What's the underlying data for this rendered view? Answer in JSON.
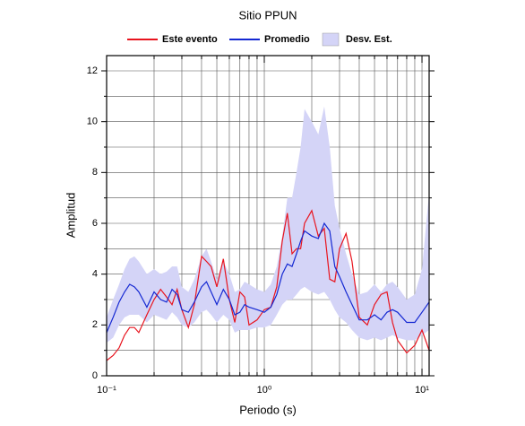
{
  "chart_data": {
    "type": "line",
    "title": "Sitio PPUN",
    "xlabel": "Periodo (s)",
    "ylabel": "Amplitud",
    "xscale": "log",
    "grid": true,
    "legend": "top",
    "xlim": [
      0.1,
      11.1
    ],
    "ylim": [
      0,
      12.6
    ],
    "xticks": [
      {
        "value": 0.1,
        "label": "10⁻¹"
      },
      {
        "value": 1,
        "label": "10⁰"
      },
      {
        "value": 10,
        "label": "10¹"
      }
    ],
    "xminor": [
      0.2,
      0.3,
      0.4,
      0.5,
      0.6,
      0.7,
      0.8,
      0.9,
      2,
      3,
      4,
      5,
      6,
      7,
      8,
      9
    ],
    "yticks": [
      0,
      2,
      4,
      6,
      8,
      10,
      12
    ],
    "yminor": [
      1,
      3,
      5,
      7,
      9,
      11
    ],
    "x": [
      0.1,
      0.11,
      0.12,
      0.13,
      0.14,
      0.15,
      0.16,
      0.18,
      0.2,
      0.22,
      0.24,
      0.26,
      0.28,
      0.3,
      0.33,
      0.36,
      0.4,
      0.43,
      0.46,
      0.5,
      0.55,
      0.6,
      0.65,
      0.7,
      0.75,
      0.8,
      0.9,
      1.0,
      1.1,
      1.2,
      1.3,
      1.4,
      1.5,
      1.6,
      1.7,
      1.8,
      2.0,
      2.2,
      2.4,
      2.6,
      2.8,
      3.0,
      3.3,
      3.6,
      4.0,
      4.5,
      5.0,
      5.5,
      6.0,
      6.5,
      7.0,
      8.0,
      9.0,
      10.0,
      11.1
    ],
    "band": {
      "name": "Desv. Est.",
      "color": "#d4d4f7",
      "lower": [
        1.3,
        1.5,
        2.0,
        2.3,
        2.4,
        2.4,
        2.4,
        2.1,
        2.4,
        2.3,
        2.2,
        2.5,
        2.3,
        2.0,
        1.9,
        2.1,
        2.5,
        2.6,
        2.4,
        2.1,
        2.4,
        2.2,
        1.7,
        1.8,
        1.8,
        1.8,
        1.9,
        1.9,
        2.0,
        2.4,
        2.8,
        3.0,
        3.0,
        3.2,
        3.4,
        3.5,
        3.3,
        3.2,
        3.3,
        3.0,
        2.6,
        2.3,
        2.1,
        1.8,
        1.5,
        1.4,
        1.5,
        1.4,
        1.5,
        1.6,
        1.5,
        1.4,
        1.4,
        1.6,
        1.8
      ],
      "upper": [
        2.3,
        3.0,
        3.6,
        4.2,
        4.6,
        4.7,
        4.5,
        4.0,
        4.2,
        4.0,
        4.1,
        4.3,
        4.3,
        3.5,
        3.3,
        3.8,
        4.7,
        5.0,
        4.5,
        3.8,
        4.5,
        4.0,
        3.3,
        3.4,
        3.7,
        3.6,
        3.4,
        3.3,
        3.6,
        4.3,
        5.5,
        7.0,
        7.0,
        8.0,
        9.0,
        10.5,
        10.0,
        9.5,
        10.6,
        9.0,
        6.7,
        5.8,
        4.8,
        4.0,
        3.2,
        3.3,
        3.6,
        3.3,
        3.6,
        3.7,
        3.5,
        3.0,
        3.2,
        4.2,
        7.2
      ]
    },
    "series": [
      {
        "name": "Este evento",
        "color": "#e8141e",
        "values": [
          0.6,
          0.8,
          1.1,
          1.6,
          1.9,
          1.9,
          1.7,
          2.4,
          3.0,
          3.4,
          3.1,
          2.8,
          3.4,
          2.6,
          1.9,
          2.8,
          4.7,
          4.5,
          4.3,
          3.5,
          4.6,
          3.0,
          2.1,
          3.3,
          3.1,
          2.0,
          2.2,
          2.6,
          2.7,
          3.5,
          5.3,
          6.4,
          4.8,
          5.0,
          5.0,
          6.0,
          6.5,
          5.5,
          5.8,
          3.8,
          3.7,
          5.0,
          5.6,
          4.5,
          2.3,
          2.0,
          2.8,
          3.2,
          3.3,
          2.1,
          1.4,
          0.9,
          1.2,
          1.8,
          1.0
        ]
      },
      {
        "name": "Promedio",
        "color": "#1428d2",
        "values": [
          1.7,
          2.3,
          2.9,
          3.3,
          3.6,
          3.5,
          3.3,
          2.7,
          3.3,
          3.0,
          2.9,
          3.4,
          3.2,
          2.6,
          2.5,
          2.9,
          3.5,
          3.7,
          3.3,
          2.8,
          3.4,
          3.0,
          2.4,
          2.5,
          2.8,
          2.7,
          2.6,
          2.5,
          2.7,
          3.2,
          4.0,
          4.4,
          4.3,
          4.8,
          5.3,
          5.7,
          5.5,
          5.4,
          6.0,
          5.7,
          4.3,
          3.9,
          3.3,
          2.8,
          2.2,
          2.2,
          2.4,
          2.2,
          2.5,
          2.6,
          2.5,
          2.1,
          2.1,
          2.5,
          2.9
        ]
      }
    ]
  }
}
